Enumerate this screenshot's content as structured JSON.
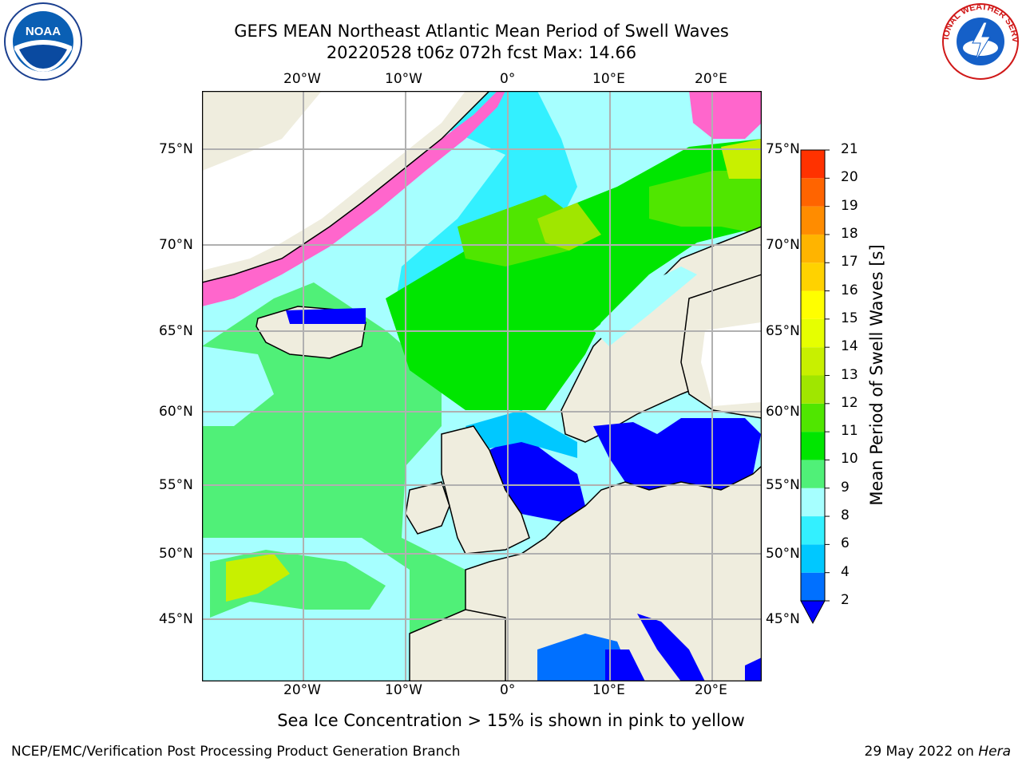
{
  "title": {
    "line1": "GEFS MEAN Northeast Atlantic Mean Period of Swell Waves",
    "line2": "20220528 t06z 072h fcst   Max: 14.66"
  },
  "map": {
    "lon_ticks": [
      "20°W",
      "10°W",
      "0°",
      "10°E",
      "20°E"
    ],
    "lat_ticks": [
      "75°N",
      "70°N",
      "65°N",
      "60°N",
      "55°N",
      "50°N",
      "45°N"
    ],
    "lon_range": [
      -30,
      25
    ],
    "lat_range": [
      41,
      78
    ],
    "colors": {
      "land": "#efedde",
      "sea_ice_pink": "#ff66cc",
      "grid": "#b0b0b0"
    }
  },
  "colorbar": {
    "label": "Mean Period of Swell Waves [s]",
    "levels": [
      "2",
      "4",
      "6",
      "8",
      "9",
      "10",
      "11",
      "12",
      "13",
      "14",
      "15",
      "16",
      "17",
      "18",
      "19",
      "20",
      "21"
    ],
    "colors": [
      "#0070ff",
      "#00c8ff",
      "#33f0ff",
      "#a6ffff",
      "#50f078",
      "#00e600",
      "#50e600",
      "#a0e600",
      "#c8f000",
      "#e6ff00",
      "#ffff00",
      "#ffd200",
      "#ffb400",
      "#ff8c00",
      "#ff6400",
      "#ff3200"
    ],
    "under_color": "#0000ff"
  },
  "caption": "Sea Ice Concentration > 15% is shown in pink to yellow",
  "footer": {
    "left": "NCEP/EMC/Verification Post Processing Product Generation Branch",
    "right_date": "29 May 2022 on",
    "right_host": "Hera"
  },
  "logos": {
    "left": "noaa-logo",
    "right": "national-weather-service-logo",
    "right_text": "NATIONAL WEATHER SERVICE"
  }
}
